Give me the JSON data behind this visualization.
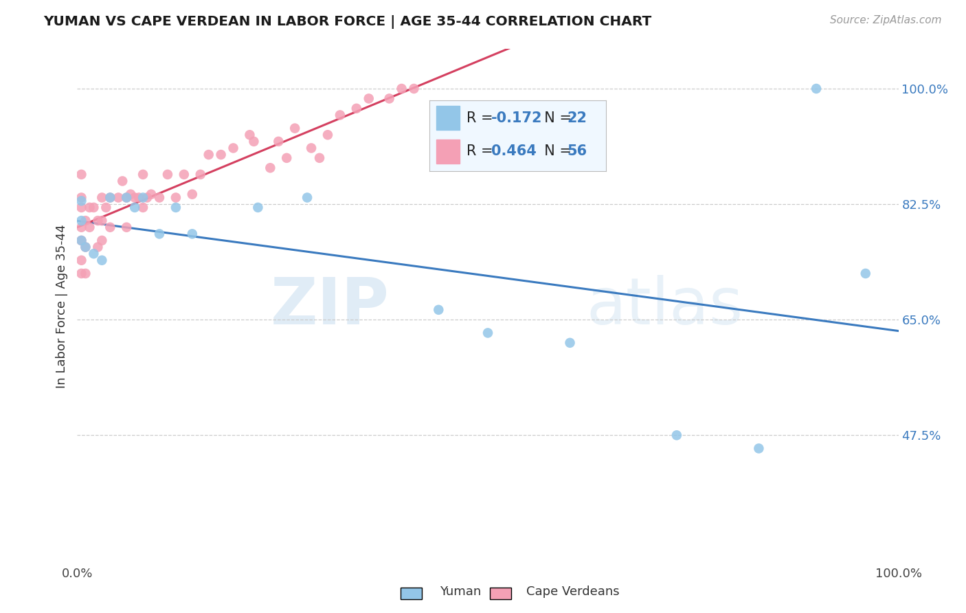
{
  "title": "YUMAN VS CAPE VERDEAN IN LABOR FORCE | AGE 35-44 CORRELATION CHART",
  "source_text": "Source: ZipAtlas.com",
  "ylabel": "In Labor Force | Age 35-44",
  "xlim": [
    0.0,
    1.0
  ],
  "ylim": [
    0.28,
    1.06
  ],
  "ytick_vals": [
    1.0,
    0.825,
    0.65,
    0.475
  ],
  "ytick_labels": [
    "100.0%",
    "82.5%",
    "65.0%",
    "47.5%"
  ],
  "xtick_vals": [
    0.0,
    1.0
  ],
  "xtick_labels": [
    "0.0%",
    "100.0%"
  ],
  "yuman_color": "#93c6e8",
  "cape_verdean_color": "#f4a0b5",
  "trend_yuman_color": "#3a7abf",
  "trend_cape_verdean_color": "#d44060",
  "R_yuman": -0.172,
  "N_yuman": 22,
  "R_cape": 0.464,
  "N_cape": 56,
  "yuman_R_label": "R = -0.172",
  "yuman_N_label": "N = 22",
  "cape_R_label": "R = 0.464",
  "cape_N_label": "N = 56",
  "watermark_zip": "ZIP",
  "watermark_atlas": "atlas",
  "yuman_points_x": [
    0.005,
    0.005,
    0.005,
    0.01,
    0.02,
    0.03,
    0.04,
    0.06,
    0.07,
    0.08,
    0.1,
    0.12,
    0.14,
    0.22,
    0.28,
    0.44,
    0.5,
    0.6,
    0.73,
    0.83,
    0.9,
    0.96
  ],
  "yuman_points_y": [
    0.83,
    0.8,
    0.77,
    0.76,
    0.75,
    0.74,
    0.835,
    0.835,
    0.82,
    0.835,
    0.78,
    0.82,
    0.78,
    0.82,
    0.835,
    0.665,
    0.63,
    0.615,
    0.475,
    0.455,
    1.0,
    0.72
  ],
  "cape_points_x": [
    0.005,
    0.005,
    0.005,
    0.005,
    0.005,
    0.005,
    0.005,
    0.01,
    0.01,
    0.01,
    0.015,
    0.015,
    0.02,
    0.025,
    0.025,
    0.03,
    0.03,
    0.03,
    0.035,
    0.04,
    0.04,
    0.05,
    0.055,
    0.06,
    0.06,
    0.065,
    0.07,
    0.075,
    0.08,
    0.08,
    0.085,
    0.09,
    0.1,
    0.11,
    0.12,
    0.13,
    0.14,
    0.15,
    0.16,
    0.175,
    0.19,
    0.21,
    0.215,
    0.235,
    0.245,
    0.255,
    0.265,
    0.285,
    0.295,
    0.305,
    0.32,
    0.34,
    0.355,
    0.38,
    0.395,
    0.41
  ],
  "cape_points_y": [
    0.72,
    0.74,
    0.77,
    0.79,
    0.82,
    0.835,
    0.87,
    0.72,
    0.76,
    0.8,
    0.79,
    0.82,
    0.82,
    0.76,
    0.8,
    0.77,
    0.8,
    0.835,
    0.82,
    0.79,
    0.835,
    0.835,
    0.86,
    0.79,
    0.835,
    0.84,
    0.835,
    0.835,
    0.82,
    0.87,
    0.835,
    0.84,
    0.835,
    0.87,
    0.835,
    0.87,
    0.84,
    0.87,
    0.9,
    0.9,
    0.91,
    0.93,
    0.92,
    0.88,
    0.92,
    0.895,
    0.94,
    0.91,
    0.895,
    0.93,
    0.96,
    0.97,
    0.985,
    0.985,
    1.0,
    1.0
  ]
}
